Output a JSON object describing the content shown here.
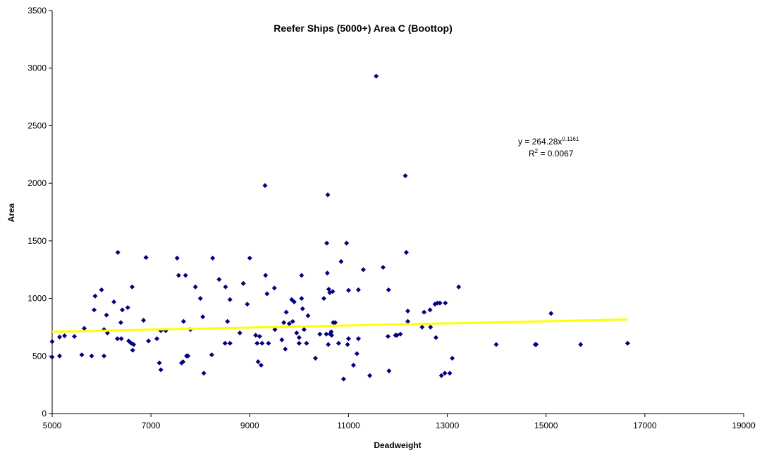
{
  "chart_data": {
    "type": "scatter",
    "title": "Reefer Ships (5000+) Area C (Boottop)",
    "xlabel": "Deadweight",
    "ylabel": "Area",
    "xlim": [
      5000,
      19000
    ],
    "ylim": [
      0,
      3500
    ],
    "x_ticks": [
      5000,
      7000,
      9000,
      11000,
      13000,
      15000,
      17000,
      19000
    ],
    "y_ticks": [
      0,
      500,
      1000,
      1500,
      2000,
      2500,
      3000,
      3500
    ],
    "grid": false,
    "legend": "none",
    "marker_color": "#000080",
    "series": [
      {
        "points": [
          [
            5000,
            490
          ],
          [
            5000,
            625
          ],
          [
            5150,
            500
          ],
          [
            5150,
            665
          ],
          [
            5250,
            675
          ],
          [
            5450,
            670
          ],
          [
            5600,
            510
          ],
          [
            5650,
            740
          ],
          [
            5800,
            500
          ],
          [
            5850,
            900
          ],
          [
            5870,
            1020
          ],
          [
            6000,
            1075
          ],
          [
            6050,
            500
          ],
          [
            6050,
            730
          ],
          [
            6100,
            855
          ],
          [
            6120,
            700
          ],
          [
            6250,
            970
          ],
          [
            6320,
            650
          ],
          [
            6330,
            1400
          ],
          [
            6390,
            790
          ],
          [
            6400,
            650
          ],
          [
            6420,
            900
          ],
          [
            6530,
            920
          ],
          [
            6550,
            630
          ],
          [
            6600,
            610
          ],
          [
            6620,
            1100
          ],
          [
            6630,
            550
          ],
          [
            6650,
            600
          ],
          [
            6850,
            810
          ],
          [
            6900,
            1355
          ],
          [
            6950,
            630
          ],
          [
            7120,
            650
          ],
          [
            7170,
            440
          ],
          [
            7200,
            380
          ],
          [
            7200,
            720
          ],
          [
            7300,
            720
          ],
          [
            7530,
            1350
          ],
          [
            7560,
            1200
          ],
          [
            7620,
            440
          ],
          [
            7650,
            450
          ],
          [
            7660,
            800
          ],
          [
            7700,
            1200
          ],
          [
            7720,
            500
          ],
          [
            7750,
            500
          ],
          [
            7800,
            730
          ],
          [
            7900,
            1100
          ],
          [
            8000,
            1000
          ],
          [
            8050,
            840
          ],
          [
            8070,
            350
          ],
          [
            8230,
            510
          ],
          [
            8250,
            1350
          ],
          [
            8380,
            1165
          ],
          [
            8500,
            610
          ],
          [
            8510,
            1100
          ],
          [
            8550,
            800
          ],
          [
            8600,
            610
          ],
          [
            8600,
            990
          ],
          [
            8800,
            700
          ],
          [
            8870,
            1130
          ],
          [
            8950,
            950
          ],
          [
            9000,
            1350
          ],
          [
            9120,
            680
          ],
          [
            9150,
            610
          ],
          [
            9170,
            450
          ],
          [
            9200,
            670
          ],
          [
            9230,
            420
          ],
          [
            9250,
            610
          ],
          [
            9310,
            1980
          ],
          [
            9320,
            1200
          ],
          [
            9350,
            1040
          ],
          [
            9380,
            610
          ],
          [
            9500,
            1090
          ],
          [
            9510,
            730
          ],
          [
            9650,
            640
          ],
          [
            9690,
            790
          ],
          [
            9720,
            560
          ],
          [
            9740,
            880
          ],
          [
            9800,
            780
          ],
          [
            9850,
            990
          ],
          [
            9870,
            800
          ],
          [
            9900,
            970
          ],
          [
            9950,
            700
          ],
          [
            10000,
            610
          ],
          [
            10000,
            660
          ],
          [
            10050,
            1200
          ],
          [
            10050,
            1000
          ],
          [
            10070,
            910
          ],
          [
            10100,
            730
          ],
          [
            10150,
            610
          ],
          [
            10180,
            850
          ],
          [
            10330,
            480
          ],
          [
            10420,
            690
          ],
          [
            10500,
            1000
          ],
          [
            10550,
            690
          ],
          [
            10560,
            1480
          ],
          [
            10570,
            1220
          ],
          [
            10580,
            1900
          ],
          [
            10590,
            600
          ],
          [
            10600,
            1080
          ],
          [
            10620,
            1050
          ],
          [
            10630,
            690
          ],
          [
            10650,
            710
          ],
          [
            10660,
            680
          ],
          [
            10680,
            1060
          ],
          [
            10690,
            790
          ],
          [
            10730,
            790
          ],
          [
            10800,
            610
          ],
          [
            10850,
            1320
          ],
          [
            10900,
            300
          ],
          [
            10960,
            1480
          ],
          [
            10980,
            600
          ],
          [
            11000,
            650
          ],
          [
            11000,
            1070
          ],
          [
            11100,
            420
          ],
          [
            11170,
            520
          ],
          [
            11200,
            650
          ],
          [
            11200,
            1075
          ],
          [
            11300,
            1250
          ],
          [
            11430,
            330
          ],
          [
            11560,
            2930
          ],
          [
            11700,
            1270
          ],
          [
            11800,
            670
          ],
          [
            11810,
            1075
          ],
          [
            11820,
            370
          ],
          [
            11950,
            680
          ],
          [
            11980,
            680
          ],
          [
            12050,
            690
          ],
          [
            12150,
            2065
          ],
          [
            12170,
            1400
          ],
          [
            12200,
            890
          ],
          [
            12200,
            800
          ],
          [
            12490,
            750
          ],
          [
            12530,
            880
          ],
          [
            12650,
            900
          ],
          [
            12660,
            750
          ],
          [
            12750,
            950
          ],
          [
            12770,
            660
          ],
          [
            12800,
            960
          ],
          [
            12850,
            960
          ],
          [
            12880,
            330
          ],
          [
            12950,
            350
          ],
          [
            12960,
            960
          ],
          [
            13050,
            350
          ],
          [
            13100,
            480
          ],
          [
            13230,
            1100
          ],
          [
            13990,
            600
          ],
          [
            14780,
            600
          ],
          [
            14800,
            600
          ],
          [
            15100,
            870
          ],
          [
            15700,
            600
          ],
          [
            16650,
            610
          ]
        ]
      }
    ],
    "trendline": {
      "type": "power",
      "coefficient": 264.28,
      "exponent": 0.1161,
      "x_range": [
        5000,
        16650
      ],
      "color": "#ffff00",
      "equation_text": {
        "prefix": "y = 264.28x",
        "exponent": "0.1161"
      },
      "r2_text": {
        "prefix": "R",
        "exponent": "2",
        "suffix": " = 0.0067"
      }
    }
  }
}
